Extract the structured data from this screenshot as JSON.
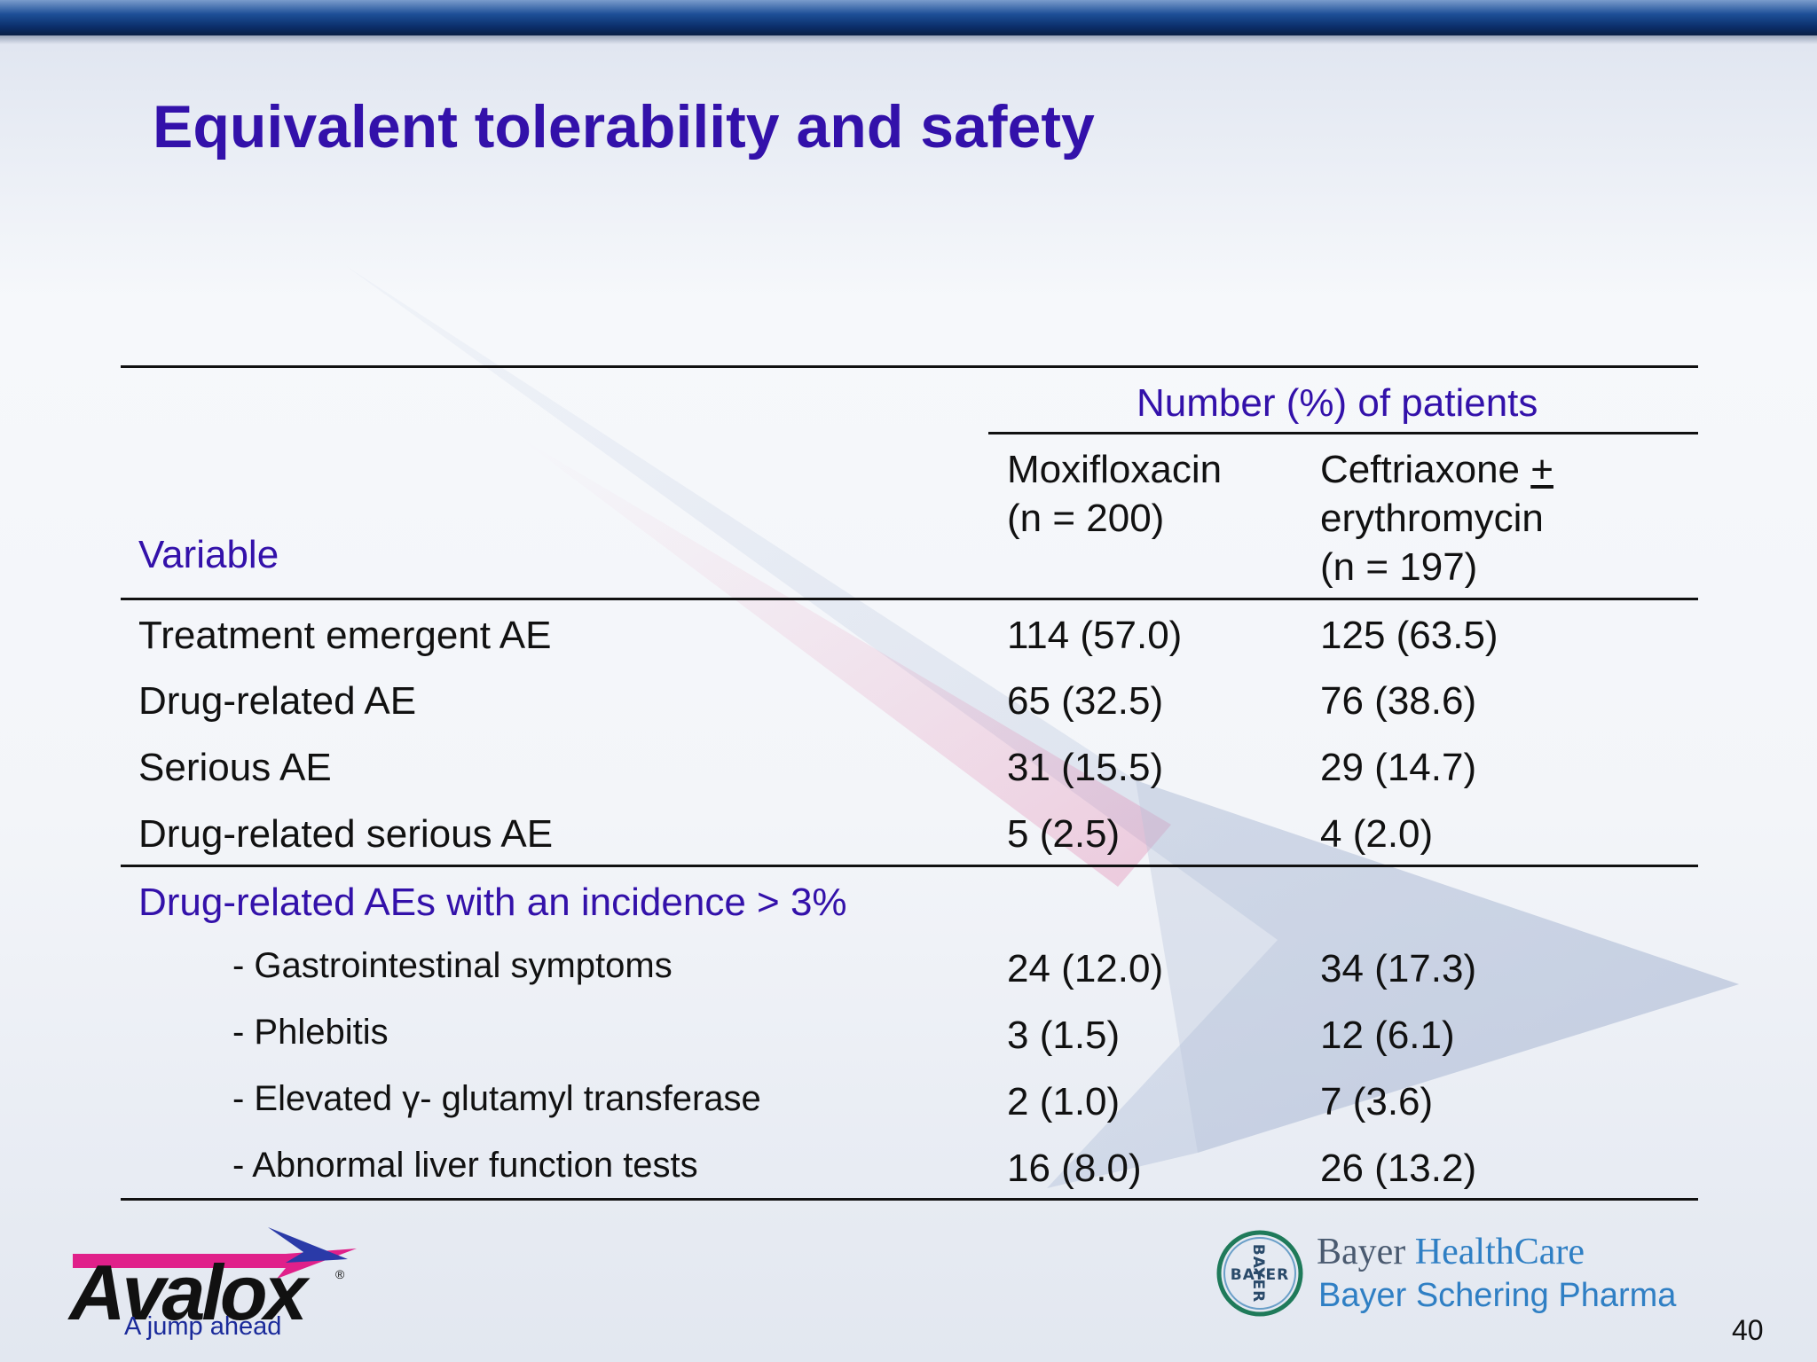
{
  "slide": {
    "title": "Equivalent tolerability and safety",
    "page_number": "40"
  },
  "table": {
    "group_header": "Number (%) of patients",
    "variable_header": "Variable",
    "col1_header_lines": [
      "Moxifloxacin",
      "(n = 200)"
    ],
    "col2_header_lines": [
      "Ceftriaxone + ",
      "erythromycin",
      "(n = 197)"
    ],
    "rows": [
      {
        "label": "Treatment emergent AE",
        "col1": "114 (57.0)",
        "col2": "125 (63.5)"
      },
      {
        "label": "Drug-related AE",
        "col1": "65 (32.5)",
        "col2": "76 (38.6)"
      },
      {
        "label": "Serious AE",
        "col1": "31 (15.5)",
        "col2": "29 (14.7)"
      },
      {
        "label": "Drug-related serious AE",
        "col1": "5 (2.5)",
        "col2": "4 (2.0)"
      }
    ],
    "subsection_label": "Drug-related AEs with an incidence > 3%",
    "sub_rows": [
      {
        "label": "- Gastrointestinal symptoms",
        "col1": "24 (12.0)",
        "col2": "34 (17.3)"
      },
      {
        "label": "- Phlebitis",
        "col1": "3 (1.5)",
        "col2": "12 (6.1)"
      },
      {
        "label": "- Elevated γ- glutamyl transferase",
        "col1": "2 (1.0)",
        "col2": "7 (3.6)"
      },
      {
        "label": "- Abnormal liver function tests",
        "col1": "16 (8.0)",
        "col2": "26 (13.2)"
      }
    ]
  },
  "footer": {
    "avalox_logo_text": "Avalox",
    "avalox_tagline": "A jump ahead",
    "bayer_word": "Bayer",
    "healthcare_word": "HealthCare",
    "bayer_schering": "Bayer Schering Pharma",
    "bayer_cross_text": "BAYER"
  },
  "colors": {
    "title": "#3311aa",
    "accent_purple": "#3311aa",
    "healthcare_blue": "#2f7fc4",
    "bayer_green": "#1f7a5a",
    "avalox_magenta": "#e0208a"
  },
  "icons": [
    "avalox-logo-icon",
    "bayer-cross-icon"
  ]
}
